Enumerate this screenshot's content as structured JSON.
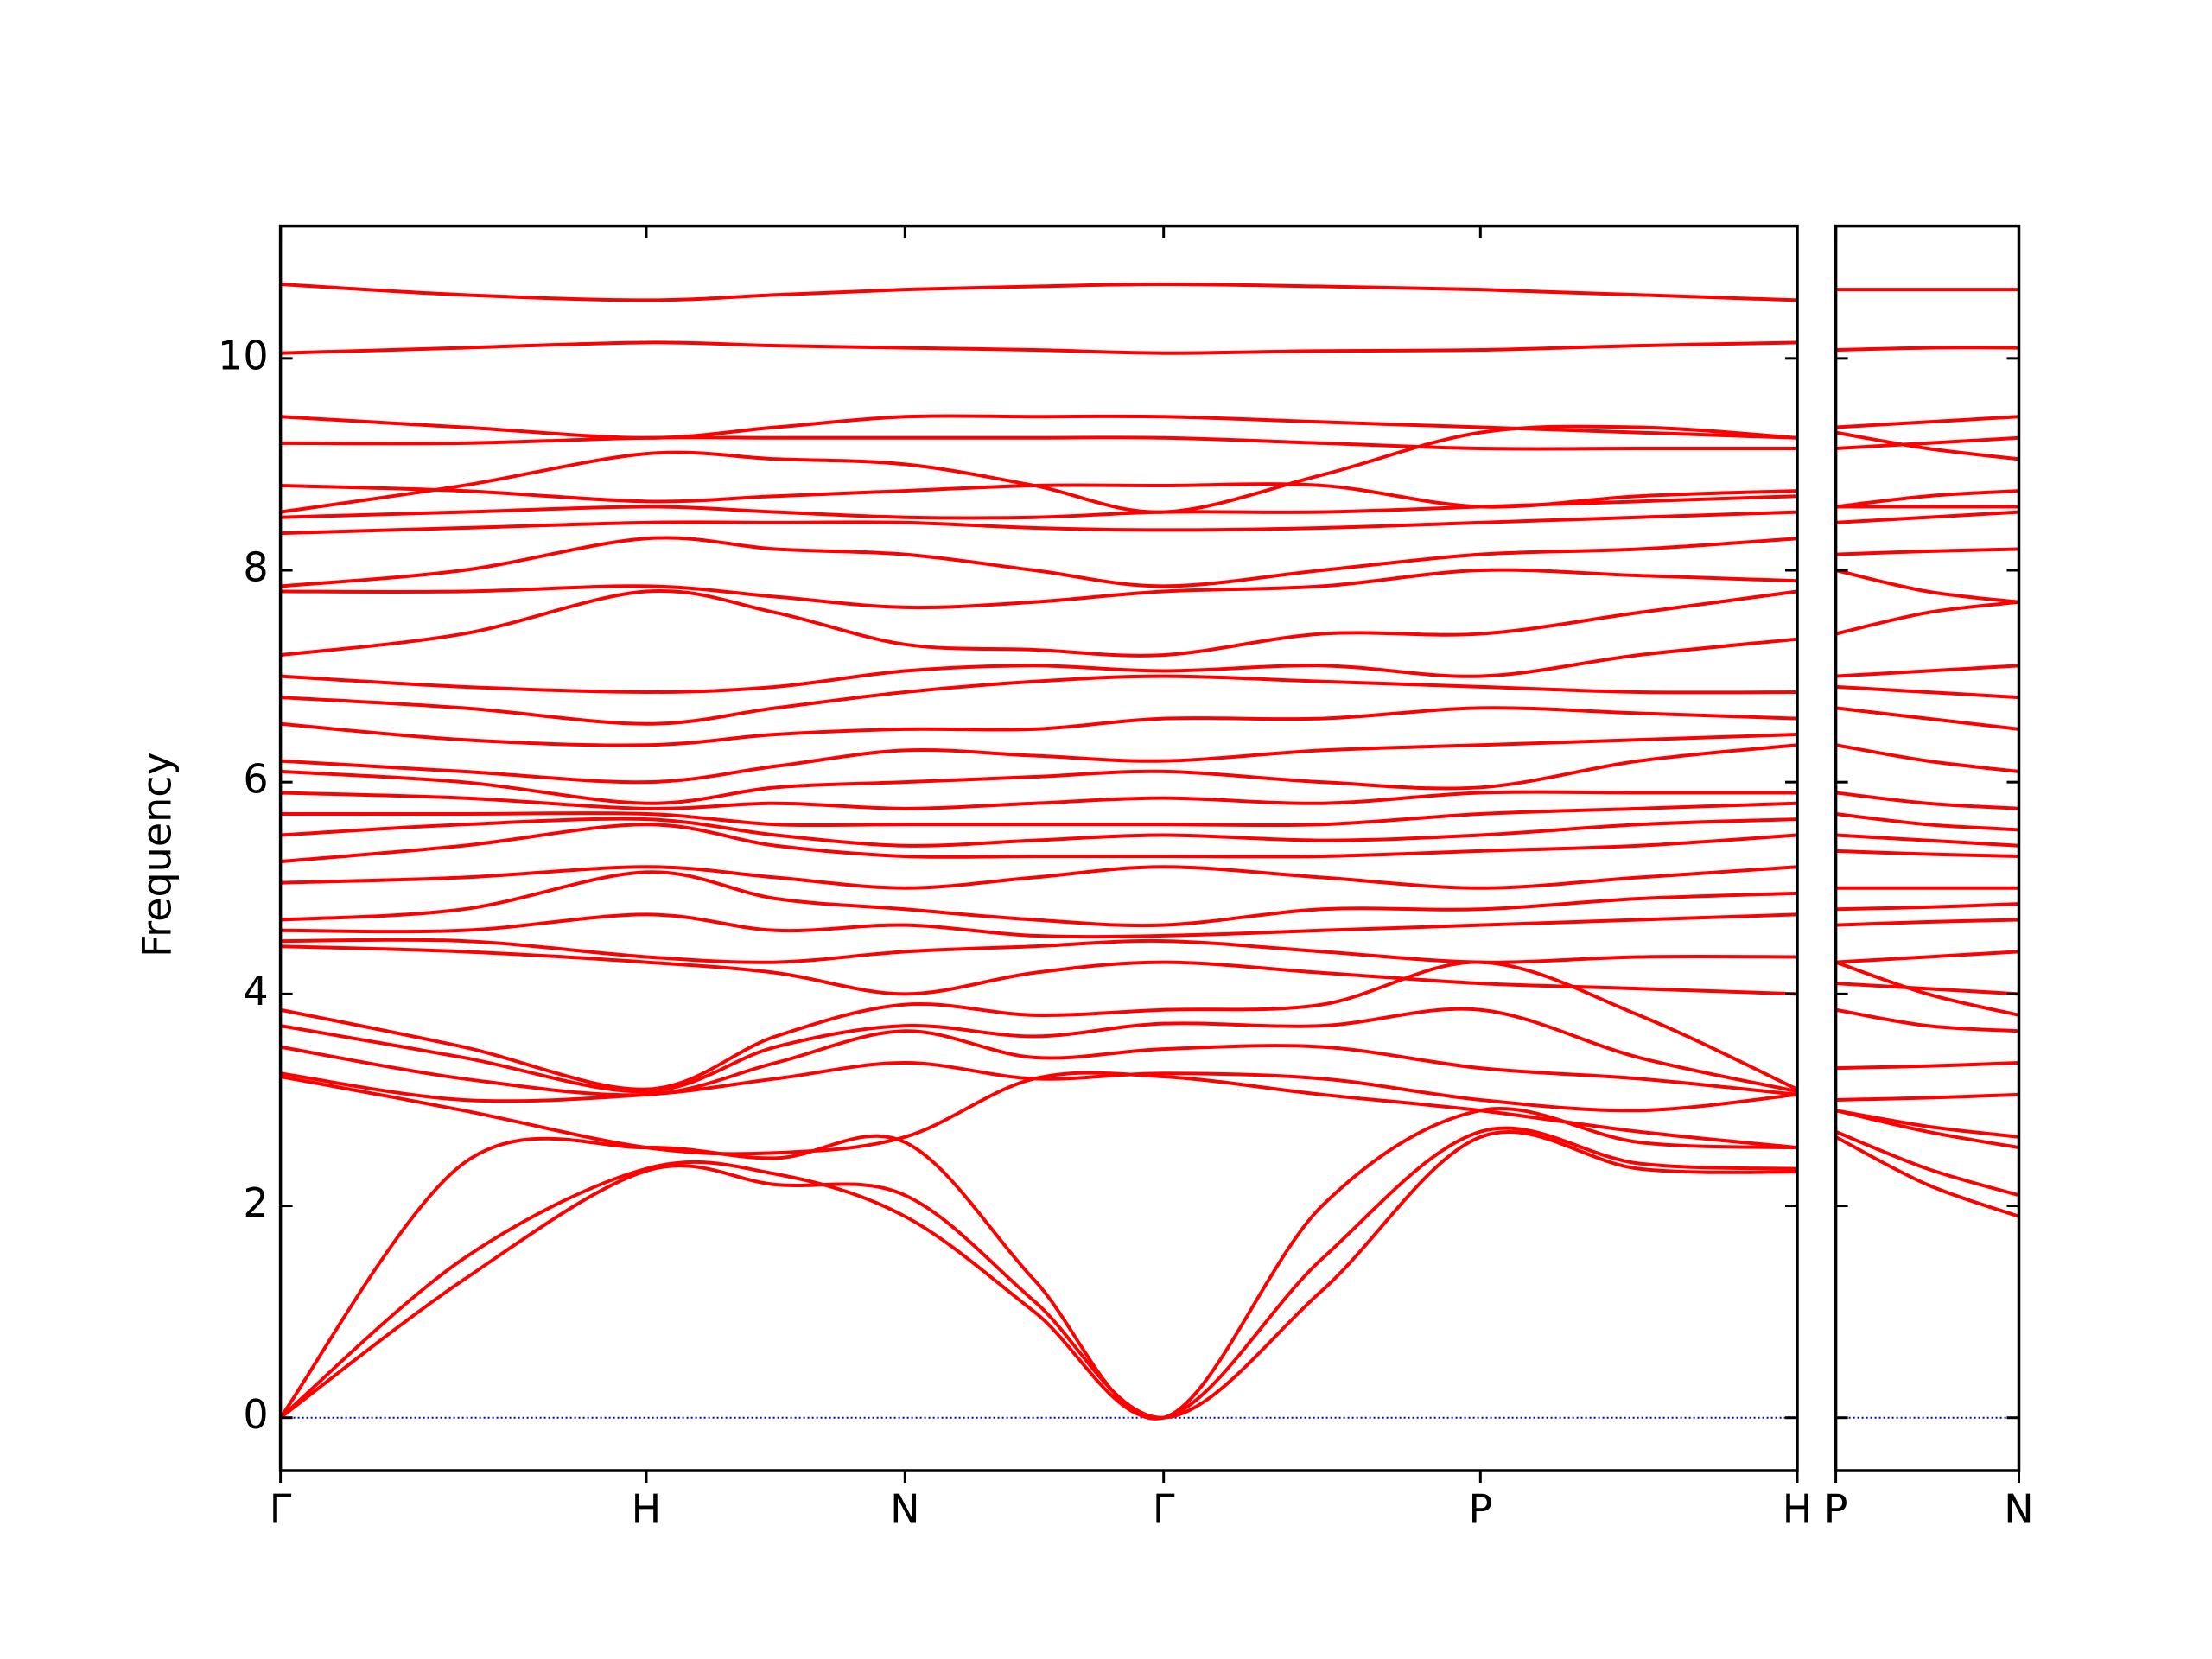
{
  "chart_data": [
    {
      "type": "line",
      "y_label": "Frequency",
      "color": "#ff0000",
      "zero_line_color": "#0000cc",
      "x": [
        0,
        0.5,
        1,
        1.3536,
        1.7071,
        2.0607,
        2.4142,
        2.8472,
        3.2802,
        3.7132,
        4.1463
      ],
      "xlim": [
        0,
        4.1463
      ],
      "xticks": [
        {
          "value": 0,
          "label": "Γ"
        },
        {
          "value": 1,
          "label": "H"
        },
        {
          "value": 1.7071,
          "label": "N"
        },
        {
          "value": 2.4142,
          "label": "Γ"
        },
        {
          "value": 3.2802,
          "label": "P"
        },
        {
          "value": 4.1463,
          "label": "H"
        }
      ],
      "ylim": [
        -0.5,
        11.25
      ],
      "yticks": [
        0,
        2,
        4,
        6,
        8,
        10
      ],
      "series": [
        {
          "values": [
            0,
            1.3,
            2.33,
            2.2,
            2.1,
            1.1,
            0,
            1.2,
            2.65,
            2.35,
            2.32
          ]
        },
        {
          "values": [
            0,
            1.5,
            2.35,
            2.3,
            1.9,
            1.0,
            0,
            1.5,
            2.7,
            2.4,
            2.35
          ]
        },
        {
          "values": [
            0,
            2.4,
            2.55,
            2.45,
            2.6,
            1.3,
            0,
            2.0,
            2.9,
            2.6,
            2.55
          ]
        },
        {
          "values": [
            3.22,
            2.9,
            2.55,
            2.5,
            2.65,
            3.2,
            3.22,
            3.05,
            2.9,
            2.7,
            2.55
          ]
        },
        {
          "values": [
            3.25,
            3.0,
            3.05,
            3.2,
            3.35,
            3.2,
            3.25,
            3.2,
            3.0,
            2.9,
            3.05
          ]
        },
        {
          "values": [
            3.5,
            3.2,
            3.05,
            3.35,
            3.65,
            3.4,
            3.48,
            3.5,
            3.3,
            3.2,
            3.05
          ]
        },
        {
          "values": [
            3.7,
            3.4,
            3.08,
            3.5,
            3.7,
            3.6,
            3.72,
            3.7,
            3.85,
            3.4,
            3.08
          ]
        },
        {
          "values": [
            3.85,
            3.5,
            3.1,
            3.6,
            3.9,
            3.8,
            3.85,
            3.9,
            4.3,
            3.8,
            3.1
          ]
        },
        {
          "values": [
            4.45,
            4.4,
            4.3,
            4.2,
            4.0,
            4.2,
            4.3,
            4.2,
            4.1,
            4.05,
            4.0
          ]
        },
        {
          "values": [
            4.5,
            4.5,
            4.35,
            4.3,
            4.4,
            4.45,
            4.5,
            4.4,
            4.3,
            4.35,
            4.35
          ]
        },
        {
          "values": [
            4.6,
            4.6,
            4.75,
            4.6,
            4.65,
            4.55,
            4.55,
            4.6,
            4.65,
            4.7,
            4.75
          ]
        },
        {
          "values": [
            4.7,
            4.8,
            5.15,
            4.9,
            4.8,
            4.7,
            4.65,
            4.8,
            4.8,
            4.9,
            4.95
          ]
        },
        {
          "values": [
            5.05,
            5.1,
            5.2,
            5.1,
            5.0,
            5.1,
            5.2,
            5.1,
            5.0,
            5.1,
            5.2
          ]
        },
        {
          "values": [
            5.25,
            5.4,
            5.6,
            5.4,
            5.3,
            5.3,
            5.3,
            5.3,
            5.35,
            5.4,
            5.5
          ]
        },
        {
          "values": [
            5.5,
            5.6,
            5.65,
            5.5,
            5.4,
            5.45,
            5.5,
            5.45,
            5.5,
            5.6,
            5.65
          ]
        },
        {
          "values": [
            5.7,
            5.7,
            5.7,
            5.6,
            5.6,
            5.6,
            5.6,
            5.6,
            5.7,
            5.75,
            5.8
          ]
        },
        {
          "values": [
            5.9,
            5.85,
            5.75,
            5.8,
            5.75,
            5.8,
            5.85,
            5.8,
            5.9,
            5.9,
            5.9
          ]
        },
        {
          "values": [
            6.1,
            6.0,
            5.8,
            5.95,
            6.0,
            6.05,
            6.1,
            6.0,
            5.95,
            6.2,
            6.35
          ]
        },
        {
          "values": [
            6.2,
            6.1,
            6.0,
            6.15,
            6.3,
            6.25,
            6.2,
            6.3,
            6.35,
            6.4,
            6.45
          ]
        },
        {
          "values": [
            6.55,
            6.4,
            6.35,
            6.45,
            6.5,
            6.5,
            6.6,
            6.6,
            6.7,
            6.65,
            6.6
          ]
        },
        {
          "values": [
            6.8,
            6.7,
            6.55,
            6.7,
            6.85,
            6.95,
            7.0,
            6.95,
            6.9,
            6.85,
            6.85
          ]
        },
        {
          "values": [
            7.0,
            6.9,
            6.85,
            6.9,
            7.05,
            7.1,
            7.05,
            7.1,
            7.0,
            7.2,
            7.35
          ]
        },
        {
          "values": [
            7.2,
            7.4,
            7.8,
            7.6,
            7.3,
            7.25,
            7.2,
            7.4,
            7.4,
            7.6,
            7.8
          ]
        },
        {
          "values": [
            7.8,
            7.8,
            7.85,
            7.75,
            7.65,
            7.7,
            7.8,
            7.85,
            8.0,
            7.95,
            7.9
          ]
        },
        {
          "values": [
            7.85,
            8.0,
            8.3,
            8.2,
            8.15,
            8.0,
            7.85,
            8.0,
            8.15,
            8.2,
            8.3
          ]
        },
        {
          "values": [
            8.35,
            8.4,
            8.45,
            8.45,
            8.45,
            8.4,
            8.38,
            8.4,
            8.45,
            8.5,
            8.55
          ]
        },
        {
          "values": [
            8.5,
            8.55,
            8.6,
            8.55,
            8.5,
            8.5,
            8.55,
            8.55,
            8.6,
            8.65,
            8.7
          ]
        },
        {
          "values": [
            8.8,
            8.75,
            8.65,
            8.7,
            8.75,
            8.8,
            8.8,
            8.8,
            8.6,
            8.7,
            8.75
          ]
        },
        {
          "values": [
            8.55,
            8.8,
            9.1,
            9.05,
            9.0,
            8.8,
            8.55,
            8.9,
            9.3,
            9.35,
            9.25
          ]
        },
        {
          "values": [
            9.2,
            9.2,
            9.25,
            9.25,
            9.25,
            9.25,
            9.25,
            9.2,
            9.15,
            9.15,
            9.15
          ]
        },
        {
          "values": [
            9.45,
            9.35,
            9.25,
            9.35,
            9.45,
            9.45,
            9.45,
            9.4,
            9.35,
            9.3,
            9.25
          ]
        },
        {
          "values": [
            10.05,
            10.1,
            10.15,
            10.12,
            10.1,
            10.08,
            10.05,
            10.07,
            10.08,
            10.12,
            10.15
          ]
        },
        {
          "values": [
            10.7,
            10.6,
            10.55,
            10.6,
            10.65,
            10.68,
            10.7,
            10.68,
            10.65,
            10.6,
            10.55
          ]
        }
      ]
    },
    {
      "type": "line",
      "color": "#ff0000",
      "zero_line_color": "#0000cc",
      "x": [
        0,
        0.25,
        0.5
      ],
      "xlim": [
        0,
        0.5
      ],
      "xticks": [
        {
          "value": 0,
          "label": "P"
        },
        {
          "value": 0.5,
          "label": "N"
        }
      ],
      "ylim": [
        -0.5,
        11.25
      ],
      "yticks": [
        0,
        2,
        4,
        6,
        8,
        10
      ],
      "series": [
        {
          "values": [
            2.65,
            2.2,
            1.9
          ]
        },
        {
          "values": [
            2.7,
            2.35,
            2.1
          ]
        },
        {
          "values": [
            2.9,
            2.7,
            2.55
          ]
        },
        {
          "values": [
            2.9,
            2.75,
            2.65
          ]
        },
        {
          "values": [
            3.0,
            3.02,
            3.05
          ]
        },
        {
          "values": [
            3.3,
            3.32,
            3.35
          ]
        },
        {
          "values": [
            3.85,
            3.7,
            3.65
          ]
        },
        {
          "values": [
            4.3,
            4.0,
            3.8
          ]
        },
        {
          "values": [
            4.1,
            4.05,
            4.0
          ]
        },
        {
          "values": [
            4.3,
            4.35,
            4.4
          ]
        },
        {
          "values": [
            4.65,
            4.68,
            4.7
          ]
        },
        {
          "values": [
            4.8,
            4.82,
            4.85
          ]
        },
        {
          "values": [
            5.0,
            5.0,
            5.0
          ]
        },
        {
          "values": [
            5.35,
            5.32,
            5.3
          ]
        },
        {
          "values": [
            5.5,
            5.45,
            5.4
          ]
        },
        {
          "values": [
            5.7,
            5.6,
            5.55
          ]
        },
        {
          "values": [
            5.9,
            5.8,
            5.75
          ]
        },
        {
          "values": [
            6.35,
            6.2,
            6.1
          ]
        },
        {
          "values": [
            6.7,
            6.6,
            6.5
          ]
        },
        {
          "values": [
            6.9,
            6.85,
            6.8
          ]
        },
        {
          "values": [
            7.0,
            7.05,
            7.1
          ]
        },
        {
          "values": [
            7.4,
            7.6,
            7.7
          ]
        },
        {
          "values": [
            8.0,
            7.8,
            7.7
          ]
        },
        {
          "values": [
            8.15,
            8.18,
            8.2
          ]
        },
        {
          "values": [
            8.45,
            8.5,
            8.55
          ]
        },
        {
          "values": [
            8.6,
            8.6,
            8.6
          ]
        },
        {
          "values": [
            8.6,
            8.7,
            8.75
          ]
        },
        {
          "values": [
            9.3,
            9.15,
            9.05
          ]
        },
        {
          "values": [
            9.15,
            9.2,
            9.25
          ]
        },
        {
          "values": [
            9.35,
            9.4,
            9.45
          ]
        },
        {
          "values": [
            10.08,
            10.1,
            10.1
          ]
        },
        {
          "values": [
            10.65,
            10.65,
            10.65
          ]
        }
      ]
    }
  ]
}
